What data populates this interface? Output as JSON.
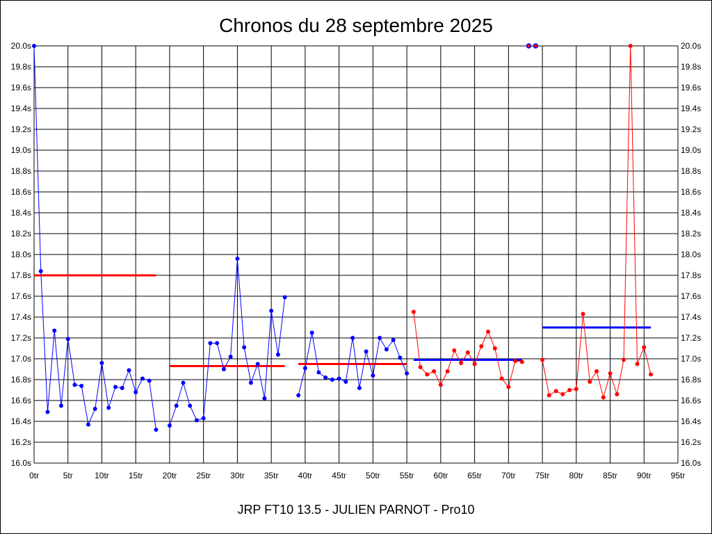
{
  "chart_data": {
    "type": "line",
    "title": "Chronos du 28 septembre 2025",
    "subtitle": "JRP FT10 13.5 - JULIEN PARNOT - Pro10",
    "xlabel": "",
    "ylabel": "",
    "xlim": [
      0,
      95
    ],
    "ylim": [
      16.0,
      20.0
    ],
    "grid": true,
    "x_tick_labels": [
      "0tr",
      "5tr",
      "10tr",
      "15tr",
      "20tr",
      "25tr",
      "30tr",
      "35tr",
      "40tr",
      "45tr",
      "50tr",
      "55tr",
      "60tr",
      "65tr",
      "70tr",
      "75tr",
      "80tr",
      "85tr",
      "90tr",
      "95tr"
    ],
    "y_tick_labels": [
      "16.0s",
      "16.2s",
      "16.4s",
      "16.6s",
      "16.8s",
      "17.0s",
      "17.2s",
      "17.4s",
      "17.6s",
      "17.8s",
      "18.0s",
      "18.2s",
      "18.4s",
      "18.6s",
      "18.8s",
      "19.0s",
      "19.2s",
      "19.4s",
      "19.6s",
      "19.8s",
      "20.0s"
    ],
    "series": [
      {
        "color": "#0000ff",
        "points": [
          [
            0,
            20.0
          ],
          [
            1,
            17.84
          ],
          [
            2,
            16.49
          ],
          [
            3,
            17.27
          ],
          [
            4,
            16.55
          ],
          [
            5,
            17.19
          ],
          [
            6,
            16.75
          ],
          [
            7,
            16.74
          ],
          [
            8,
            16.37
          ],
          [
            9,
            16.52
          ],
          [
            10,
            16.96
          ],
          [
            11,
            16.53
          ],
          [
            12,
            16.73
          ],
          [
            13,
            16.72
          ],
          [
            14,
            16.89
          ],
          [
            15,
            16.68
          ],
          [
            16,
            16.81
          ],
          [
            17,
            16.79
          ],
          [
            18,
            16.32
          ]
        ]
      },
      {
        "color": "#0000ff",
        "points": [
          [
            20,
            16.36
          ],
          [
            21,
            16.55
          ],
          [
            22,
            16.77
          ],
          [
            23,
            16.55
          ],
          [
            24,
            16.41
          ],
          [
            25,
            16.43
          ],
          [
            26,
            17.15
          ],
          [
            27,
            17.15
          ],
          [
            28,
            16.9
          ],
          [
            29,
            17.02
          ],
          [
            30,
            17.96
          ],
          [
            31,
            17.11
          ],
          [
            32,
            16.77
          ],
          [
            33,
            16.95
          ],
          [
            34,
            16.62
          ],
          [
            35,
            17.46
          ],
          [
            36,
            17.04
          ],
          [
            37,
            17.59
          ]
        ]
      },
      {
        "color": "#0000ff",
        "points": [
          [
            39,
            16.65
          ],
          [
            40,
            16.91
          ],
          [
            41,
            17.25
          ],
          [
            42,
            16.87
          ],
          [
            43,
            16.82
          ],
          [
            44,
            16.8
          ],
          [
            45,
            16.81
          ],
          [
            46,
            16.78
          ],
          [
            47,
            17.2
          ],
          [
            48,
            16.72
          ],
          [
            49,
            17.07
          ],
          [
            50,
            16.84
          ],
          [
            51,
            17.2
          ],
          [
            52,
            17.09
          ],
          [
            53,
            17.18
          ],
          [
            54,
            17.01
          ],
          [
            55,
            16.86
          ]
        ]
      },
      {
        "color": "#ff0000",
        "points": [
          [
            56,
            17.45
          ],
          [
            57,
            16.92
          ],
          [
            58,
            16.85
          ],
          [
            59,
            16.88
          ],
          [
            60,
            16.75
          ],
          [
            61,
            16.88
          ],
          [
            62,
            17.08
          ],
          [
            63,
            16.96
          ],
          [
            64,
            17.06
          ],
          [
            65,
            16.95
          ],
          [
            66,
            17.12
          ],
          [
            67,
            17.26
          ],
          [
            68,
            17.1
          ],
          [
            69,
            16.81
          ],
          [
            70,
            16.73
          ],
          [
            71,
            16.98
          ],
          [
            72,
            16.97
          ]
        ]
      },
      {
        "color": "#ff0000",
        "points": [
          [
            75,
            16.99
          ],
          [
            76,
            16.65
          ],
          [
            77,
            16.69
          ],
          [
            78,
            16.66
          ],
          [
            79,
            16.7
          ],
          [
            80,
            16.71
          ],
          [
            81,
            17.43
          ],
          [
            82,
            16.78
          ],
          [
            83,
            16.88
          ],
          [
            84,
            16.63
          ],
          [
            85,
            16.86
          ],
          [
            86,
            16.66
          ],
          [
            87,
            16.99
          ],
          [
            88,
            20.0
          ],
          [
            89,
            16.95
          ],
          [
            90,
            17.11
          ],
          [
            91,
            16.85
          ]
        ]
      }
    ],
    "isolated_points": [
      {
        "x": 73,
        "y": 20.0,
        "fill": "#ff0000",
        "stroke": "#0000ff"
      },
      {
        "x": 74,
        "y": 20.0,
        "fill": "#ff0000",
        "stroke": "#0000ff"
      }
    ],
    "average_lines": [
      {
        "x_start": 0,
        "x_end": 18,
        "y": 17.8,
        "color": "#ff0000"
      },
      {
        "x_start": 20,
        "x_end": 37,
        "y": 16.93,
        "color": "#ff0000"
      },
      {
        "x_start": 39,
        "x_end": 55,
        "y": 16.95,
        "color": "#ff0000"
      },
      {
        "x_start": 56,
        "x_end": 72,
        "y": 16.99,
        "color": "#0000ff"
      },
      {
        "x_start": 75,
        "x_end": 91,
        "y": 17.3,
        "color": "#0000ff"
      }
    ]
  }
}
